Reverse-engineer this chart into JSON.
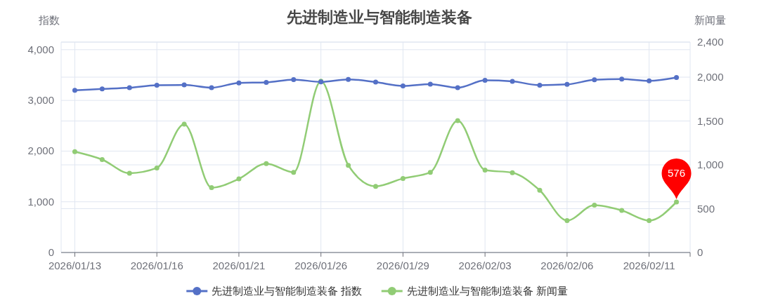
{
  "chart_data": {
    "type": "line",
    "title": "先进制造业与智能制造装备",
    "ylabel": "指数",
    "y2label": "新闻量",
    "categories": [
      "2026/01/13",
      null,
      null,
      "2026/01/16",
      null,
      null,
      "2026/01/21",
      null,
      null,
      "2026/01/26",
      null,
      null,
      "2026/01/29",
      null,
      null,
      "2026/02/03",
      null,
      null,
      "2026/02/06",
      null,
      null,
      "2026/02/11",
      null
    ],
    "series": [
      {
        "name": "先进制造业与智能制造装备 指数",
        "color": "#5470c6",
        "values": [
          3200,
          3225,
          3250,
          3300,
          3305,
          3250,
          3345,
          3355,
          3410,
          3365,
          3415,
          3360,
          3285,
          3320,
          3250,
          3395,
          3375,
          3300,
          3315,
          3405,
          3420,
          3385,
          3450
        ]
      },
      {
        "name": "先进制造业与智能制造装备 新闻量",
        "color": "#91cc75",
        "axis": "y2",
        "values": [
          1150,
          1060,
          905,
          965,
          1465,
          740,
          840,
          1015,
          915,
          1955,
          995,
          755,
          845,
          915,
          1505,
          940,
          910,
          710,
          365,
          540,
          480,
          365,
          576
        ],
        "value_labels": [
          null,
          null,
          null,
          null,
          null,
          null,
          null,
          null,
          null,
          null,
          null,
          null,
          null,
          null,
          null,
          null,
          null,
          null,
          null,
          null,
          null,
          null,
          "576"
        ]
      }
    ],
    "ylim": [
      0,
      4150
    ],
    "yticks": [
      0,
      {
        "value": 1000,
        "label": "1,000"
      },
      {
        "value": 2000,
        "label": "2,000"
      },
      {
        "value": 3000,
        "label": "3,000"
      },
      {
        "value": 4000,
        "label": "4,000"
      }
    ],
    "y2lim": [
      0,
      2400
    ],
    "y2ticks": [
      0,
      500,
      {
        "value": 1000,
        "label": "1,000"
      },
      {
        "value": 1500,
        "label": "1,500"
      },
      {
        "value": 2000,
        "label": "2,000"
      },
      {
        "value": 2400,
        "label": "2,400"
      }
    ],
    "grid": true,
    "legend": "bottom",
    "marker": "circle",
    "line_style": "solid"
  }
}
